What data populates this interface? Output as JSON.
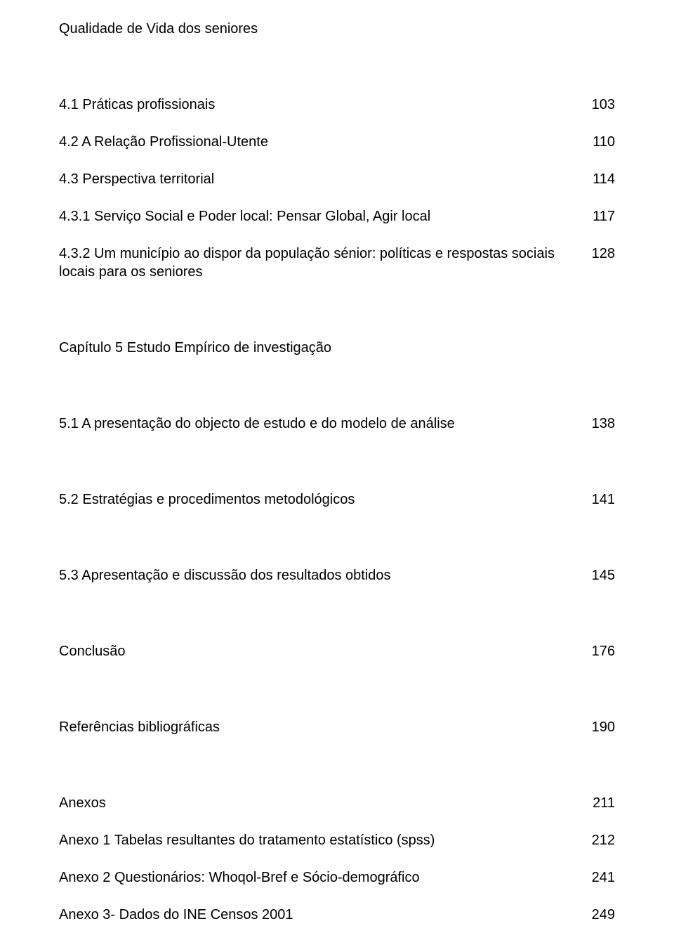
{
  "header": "Qualidade de Vida dos seniores",
  "entries": [
    {
      "label": "4.1 Práticas profissionais",
      "page": "103"
    },
    {
      "label": "4.2 A Relação Profissional-Utente",
      "page": "110"
    },
    {
      "label": "4.3 Perspectiva territorial",
      "page": "114"
    },
    {
      "label": "4.3.1 Serviço Social e Poder local: Pensar Global, Agir local",
      "page": "117"
    },
    {
      "label": "4.3.2 Um município ao dispor da população sénior: políticas e respostas sociais locais para os seniores",
      "page": "128"
    }
  ],
  "chapter5": "Capítulo 5 Estudo Empírico de investigação",
  "section51": {
    "label": "5.1 A presentação do objecto de estudo e do modelo de análise",
    "page": "138"
  },
  "section52": {
    "label": "5.2 Estratégias e procedimentos metodológicos",
    "page": "141"
  },
  "section53": {
    "label": "5.3 Apresentação e discussão dos resultados obtidos",
    "page": "145"
  },
  "conclusion": {
    "label": "Conclusão",
    "page": "176"
  },
  "references": {
    "label": "Referências bibliográficas",
    "page": "190"
  },
  "annexes": {
    "label": "Anexos",
    "page": "211"
  },
  "annex1": {
    "label": "Anexo 1 Tabelas resultantes do tratamento estatístico (spss)",
    "page": "212"
  },
  "annex2": {
    "label": "Anexo 2 Questionários: Whoqol-Bref e Sócio-demográfico",
    "page": "241"
  },
  "annex3": {
    "label": "Anexo 3- Dados do INE Censos 2001",
    "page": "249"
  },
  "style": {
    "font_family": "Arial",
    "font_size_pt": 15,
    "text_color": "#000000",
    "background_color": "#ffffff"
  }
}
